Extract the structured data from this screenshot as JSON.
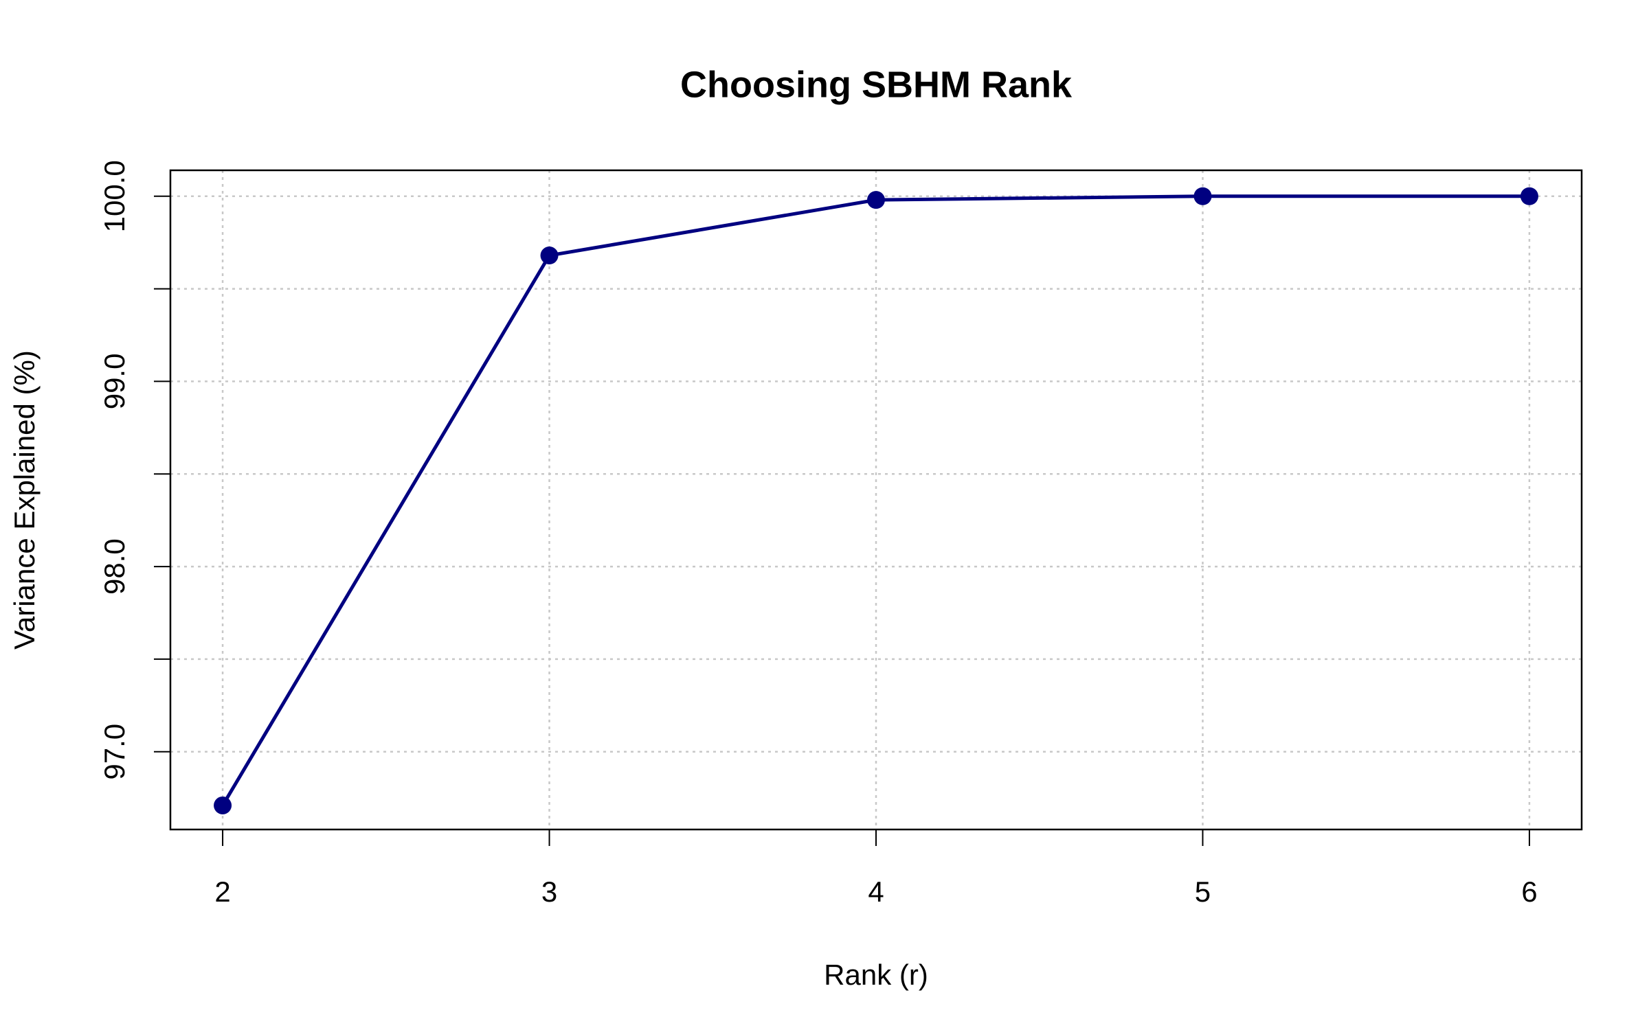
{
  "chart_data": {
    "type": "line",
    "title": "Choosing SBHM Rank",
    "x_label": "Rank (r)",
    "y_label": "Variance Explained (%)",
    "x": [
      2,
      3,
      4,
      5,
      6
    ],
    "series": [
      {
        "name": "Variance Explained",
        "color": "#000080",
        "values": [
          96.71,
          99.68,
          99.98,
          100.0,
          100.0
        ]
      }
    ],
    "xlim": [
      1.84,
      6.16
    ],
    "xticks": [
      2,
      3,
      4,
      5,
      6
    ],
    "ylim": [
      96.58,
      100.14
    ],
    "yticks": [
      {
        "value": 97,
        "label": "97.0"
      },
      {
        "value": 97.5,
        "label": null
      },
      {
        "value": 98,
        "label": "98.0"
      },
      {
        "value": 98.5,
        "label": null
      },
      {
        "value": 99,
        "label": "99.0"
      },
      {
        "value": 99.5,
        "label": null
      },
      {
        "value": 100,
        "label": "100.0"
      }
    ],
    "grid": true
  }
}
